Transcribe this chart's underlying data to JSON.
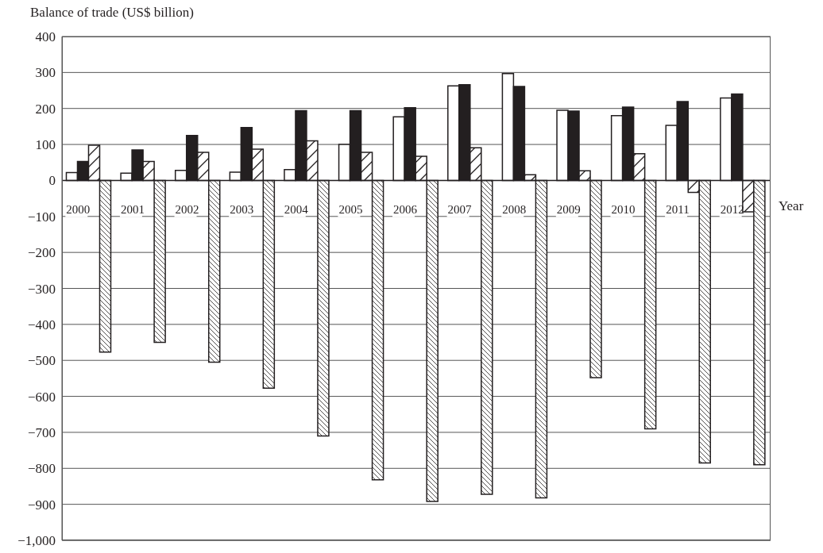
{
  "chart_data": {
    "type": "bar",
    "ylabel": "Balance of trade (US$ billion)",
    "xlabel": "Year",
    "categories": [
      "2000",
      "2001",
      "2002",
      "2003",
      "2004",
      "2005",
      "2006",
      "2007",
      "2008",
      "2009",
      "2010",
      "2011",
      "2012"
    ],
    "series": [
      {
        "color": "#ffffff",
        "values": [
          22,
          20,
          28,
          23,
          30,
          100,
          177,
          263,
          297,
          195,
          180,
          153,
          229
        ]
      },
      {
        "color": "#231f20",
        "values": [
          53,
          85,
          125,
          147,
          194,
          194,
          202,
          266,
          261,
          193,
          204,
          219,
          240
        ]
      },
      {
        "color": "#231f20",
        "values": [
          98,
          53,
          78,
          87,
          110,
          78,
          67,
          91,
          16,
          27,
          74,
          -33,
          -87
        ]
      },
      {
        "color": "#231f20",
        "values": [
          -477,
          -450,
          -505,
          -577,
          -710,
          -832,
          -892,
          -872,
          -882,
          -548,
          -690,
          -785,
          -790
        ]
      }
    ],
    "ylim": [
      -1000,
      400
    ],
    "yticks": [
      {
        "value": -1000,
        "label": "−1,000"
      },
      {
        "value": -900,
        "label": "−900"
      },
      {
        "value": -800,
        "label": "−800"
      },
      {
        "value": -700,
        "label": "−700"
      },
      {
        "value": -600,
        "label": "−600"
      },
      {
        "value": -500,
        "label": "−500"
      },
      {
        "value": -400,
        "label": "−400"
      },
      {
        "value": -300,
        "label": "−300"
      },
      {
        "value": -200,
        "label": "−200"
      },
      {
        "value": -100,
        "label": "−100"
      },
      0,
      100,
      200,
      300,
      400
    ],
    "grid": "y"
  }
}
